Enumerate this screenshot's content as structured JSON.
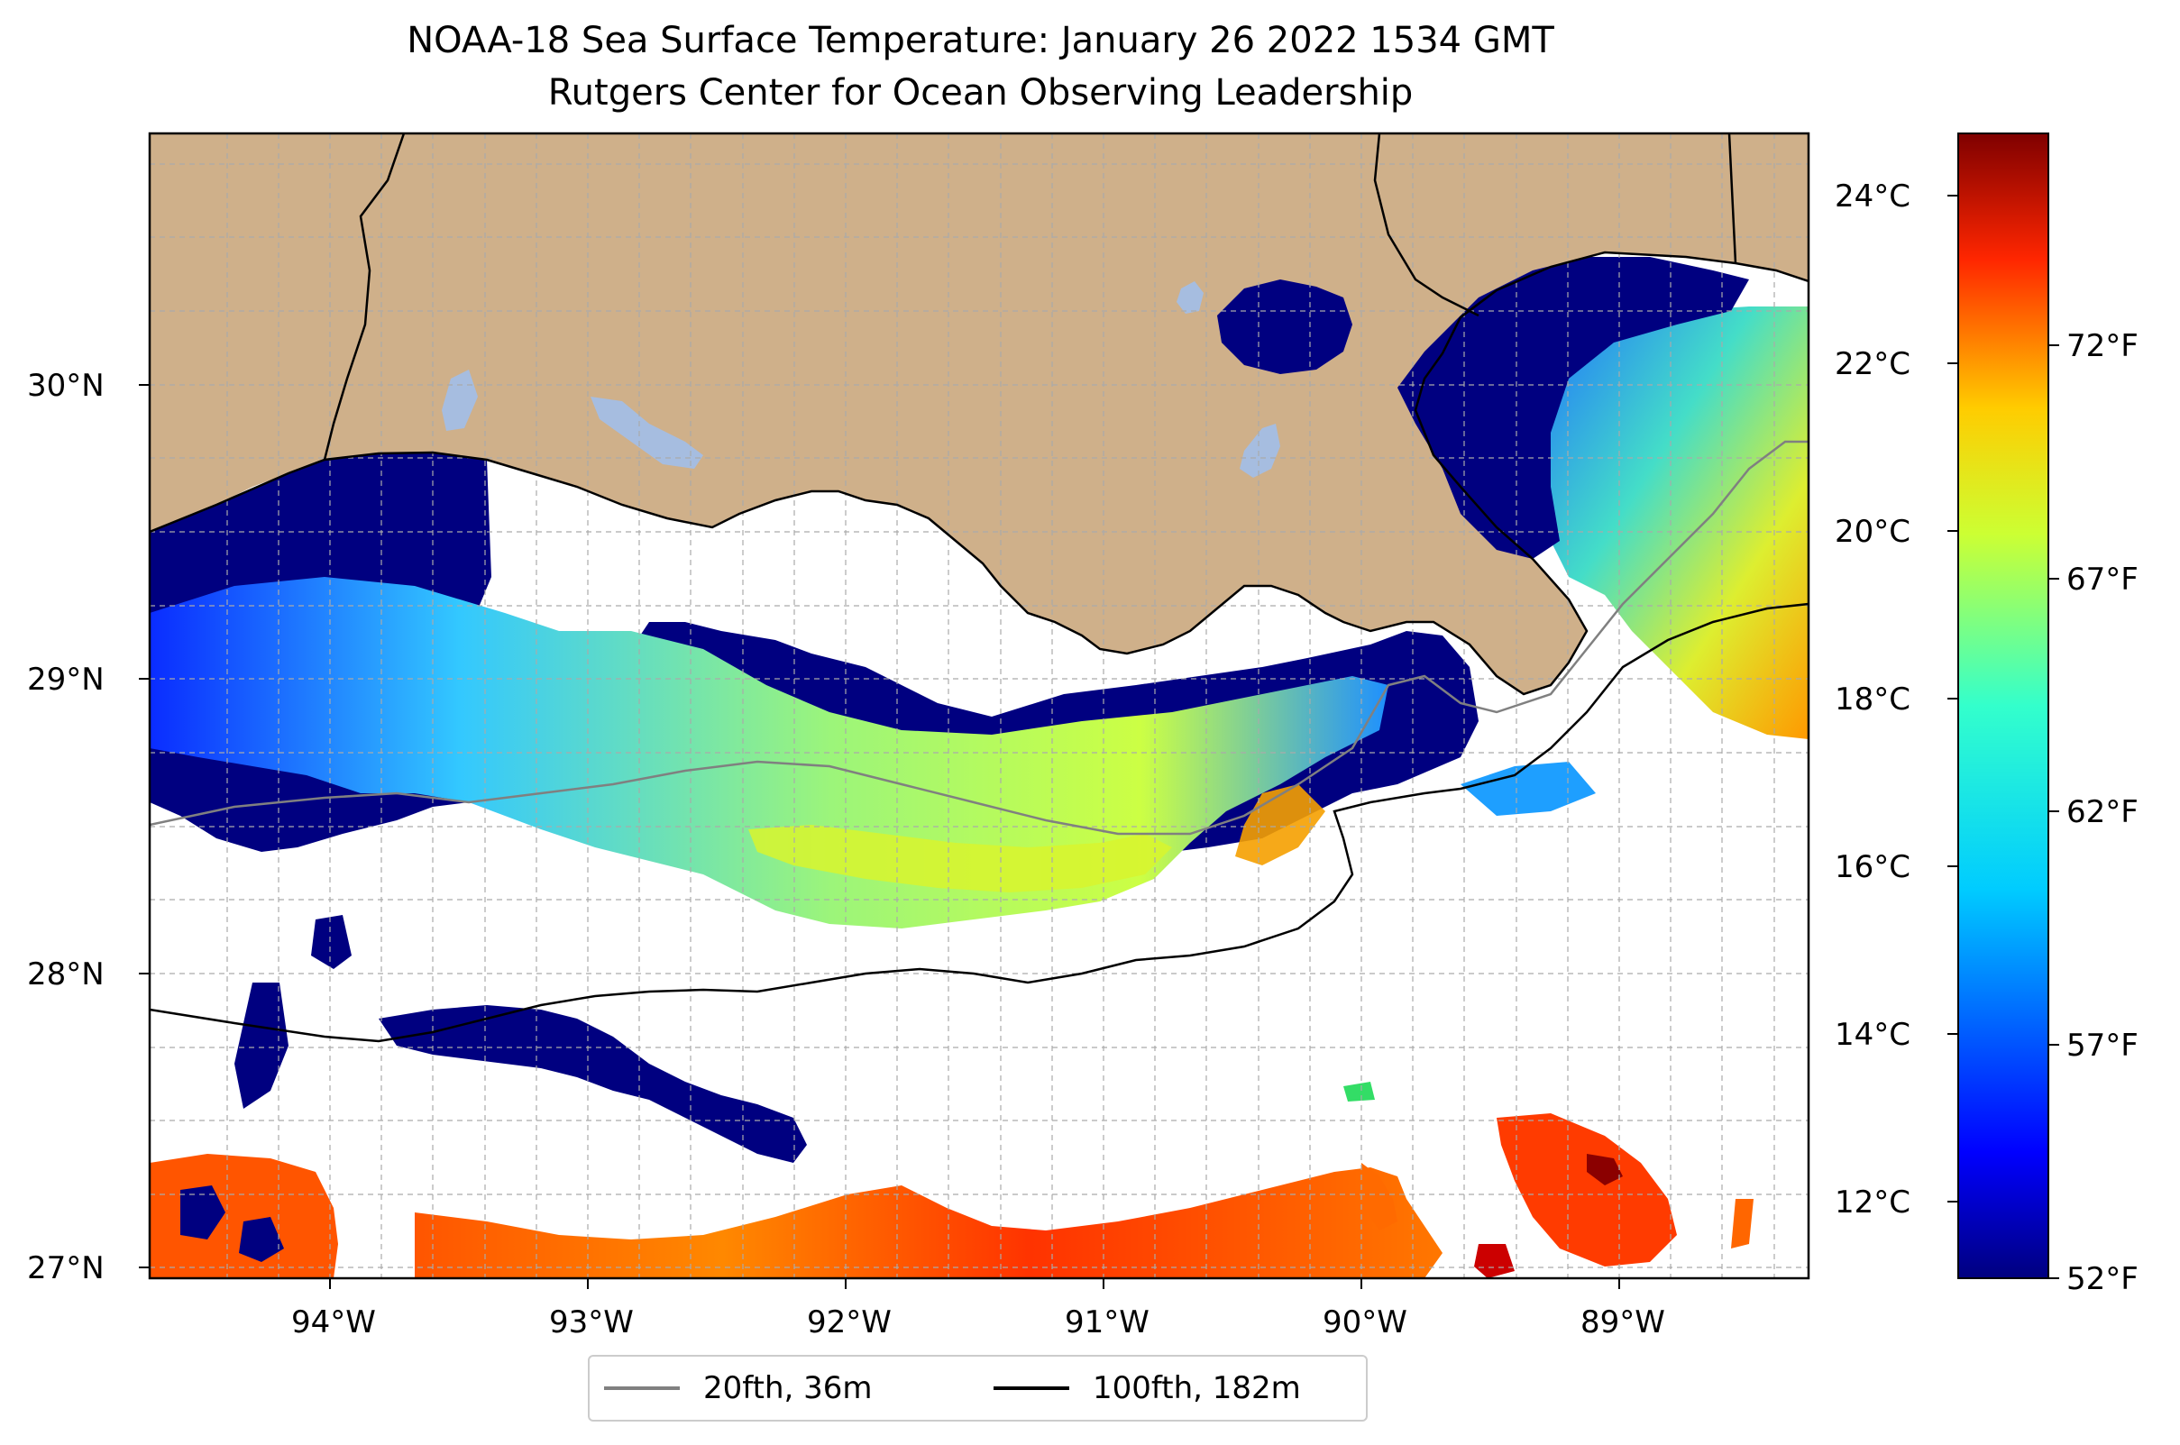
{
  "title": {
    "line1": "NOAA-18 Sea Surface Temperature: January 26 2022 1534 GMT",
    "line2": "Rutgers Center for Ocean Observing Leadership"
  },
  "map": {
    "lon_range": [
      -94.55,
      -88.2
    ],
    "lat_range": [
      26.95,
      30.85
    ],
    "gridlines": true,
    "land_color": "#cfb08a",
    "no_data_color": "#ffffff",
    "longitude_labels": [
      "94°W",
      "93°W",
      "92°W",
      "91°W",
      "90°W",
      "89°W"
    ],
    "latitude_labels": [
      "30°N",
      "29°N",
      "28°N",
      "27°N"
    ]
  },
  "colorbar": {
    "colormap": "jet",
    "celsius_labels": [
      "24°C",
      "22°C",
      "20°C",
      "18°C",
      "16°C",
      "14°C",
      "12°C"
    ],
    "fahrenheit_labels": [
      "72°F",
      "67°F",
      "62°F",
      "57°F",
      "52°F"
    ],
    "range_f": [
      52,
      76
    ]
  },
  "legend": {
    "position": "bottom-center",
    "entries": [
      {
        "label": "20fth, 36m",
        "color": "#808080"
      },
      {
        "label": "100fth, 182m",
        "color": "#000000"
      }
    ]
  }
}
